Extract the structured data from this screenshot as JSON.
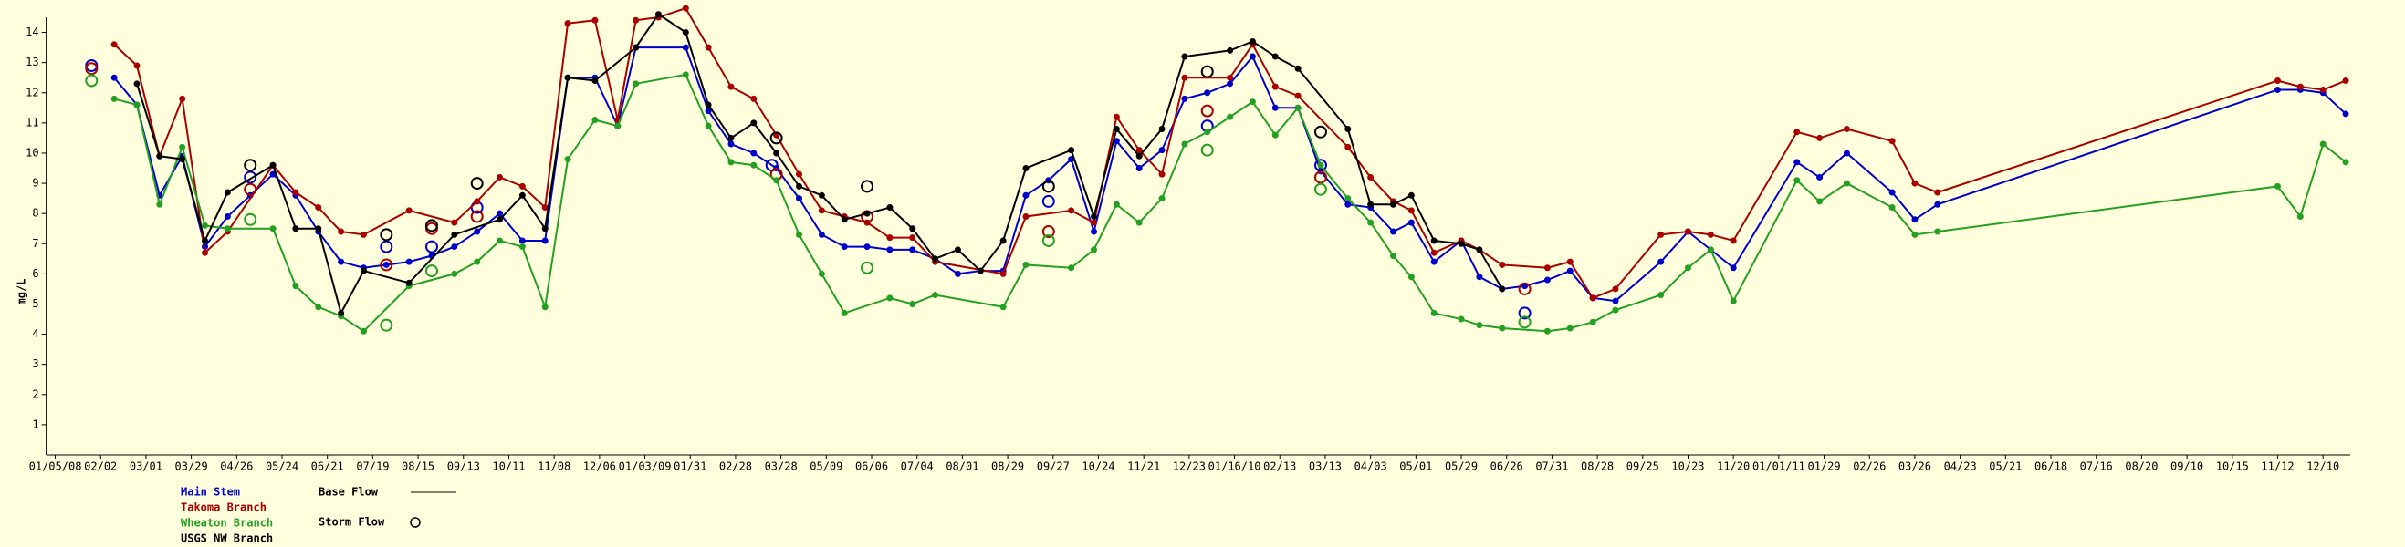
{
  "chart_data": {
    "type": "line",
    "ylabel": "mg/L",
    "background": "#ffffdd",
    "xlim": [
      -0.2,
      50.6
    ],
    "ylim": [
      0,
      14.5
    ],
    "yticks": [
      1,
      2,
      3,
      4,
      5,
      6,
      7,
      8,
      9,
      10,
      11,
      12,
      13,
      14
    ],
    "xticks": [
      {
        "value": 0,
        "label": "01/05/08"
      },
      {
        "value": 1,
        "label": "02/02"
      },
      {
        "value": 2,
        "label": "03/01"
      },
      {
        "value": 3,
        "label": "03/29"
      },
      {
        "value": 4,
        "label": "04/26"
      },
      {
        "value": 5,
        "label": "05/24"
      },
      {
        "value": 6,
        "label": "06/21"
      },
      {
        "value": 7,
        "label": "07/19"
      },
      {
        "value": 8,
        "label": "08/15"
      },
      {
        "value": 9,
        "label": "09/13"
      },
      {
        "value": 10,
        "label": "10/11"
      },
      {
        "value": 11,
        "label": "11/08"
      },
      {
        "value": 12,
        "label": "12/06"
      },
      {
        "value": 13,
        "label": "01/03/09"
      },
      {
        "value": 14,
        "label": "01/31"
      },
      {
        "value": 15,
        "label": "02/28"
      },
      {
        "value": 16,
        "label": "03/28"
      },
      {
        "value": 17,
        "label": "05/09"
      },
      {
        "value": 18,
        "label": "06/06"
      },
      {
        "value": 19,
        "label": "07/04"
      },
      {
        "value": 20,
        "label": "08/01"
      },
      {
        "value": 21,
        "label": "08/29"
      },
      {
        "value": 22,
        "label": "09/27"
      },
      {
        "value": 23,
        "label": "10/24"
      },
      {
        "value": 24,
        "label": "11/21"
      },
      {
        "value": 25,
        "label": "12/23"
      },
      {
        "value": 26,
        "label": "01/16/10"
      },
      {
        "value": 27,
        "label": "02/13"
      },
      {
        "value": 28,
        "label": "03/13"
      },
      {
        "value": 29,
        "label": "04/03"
      },
      {
        "value": 30,
        "label": "05/01"
      },
      {
        "value": 31,
        "label": "05/29"
      },
      {
        "value": 32,
        "label": "06/26"
      },
      {
        "value": 33,
        "label": "07/31"
      },
      {
        "value": 34,
        "label": "08/28"
      },
      {
        "value": 35,
        "label": "09/25"
      },
      {
        "value": 36,
        "label": "10/23"
      },
      {
        "value": 37,
        "label": "11/20"
      },
      {
        "value": 38,
        "label": "01/01/11"
      },
      {
        "value": 39,
        "label": "01/29"
      },
      {
        "value": 40,
        "label": "02/26"
      },
      {
        "value": 41,
        "label": "03/26"
      },
      {
        "value": 42,
        "label": "04/23"
      },
      {
        "value": 43,
        "label": "05/21"
      },
      {
        "value": 44,
        "label": "06/18"
      },
      {
        "value": 45,
        "label": "07/16"
      },
      {
        "value": 46,
        "label": "08/20"
      },
      {
        "value": 47,
        "label": "09/10"
      },
      {
        "value": 48,
        "label": "10/15"
      },
      {
        "value": 49,
        "label": "11/12"
      },
      {
        "value": 50,
        "label": "12/10"
      }
    ],
    "legend_labels": [
      "Base Flow",
      "Storm Flow"
    ],
    "series": [
      {
        "name": "Main Stem",
        "color": "#0000cc",
        "x": [
          1.3,
          1.8,
          2.3,
          2.8,
          3.3,
          3.8,
          4.3,
          4.8,
          5.3,
          5.8,
          6.3,
          6.8,
          7.3,
          7.8,
          8.3,
          8.8,
          9.3,
          9.8,
          10.3,
          10.8,
          11.3,
          11.9,
          12.4,
          12.8,
          13.9,
          14.4,
          14.9,
          15.4,
          15.9,
          16.4,
          16.9,
          17.4,
          17.9,
          18.4,
          18.9,
          19.4,
          19.9,
          20.4,
          20.9,
          21.4,
          21.9,
          22.4,
          22.9,
          23.4,
          23.9,
          24.4,
          24.9,
          25.4,
          25.9,
          26.4,
          26.9,
          27.4,
          27.9,
          28.5,
          29.0,
          29.5,
          29.9,
          30.4,
          31.0,
          31.4,
          31.9,
          32.4,
          32.9,
          33.4,
          33.9,
          34.4,
          35.4,
          36.0,
          36.5,
          37.0,
          38.4,
          38.9,
          39.5,
          40.5,
          41.0,
          41.5,
          49.0,
          49.5,
          50.0,
          50.5
        ],
        "values": [
          12.5,
          11.6,
          8.6,
          9.9,
          6.9,
          7.9,
          8.6,
          9.3,
          8.6,
          7.4,
          6.4,
          6.2,
          6.3,
          6.4,
          6.6,
          6.9,
          7.4,
          8.0,
          7.1,
          7.1,
          12.5,
          12.5,
          10.9,
          13.5,
          13.5,
          11.4,
          10.3,
          10.0,
          9.5,
          8.5,
          7.3,
          6.9,
          6.9,
          6.8,
          6.8,
          6.5,
          6.0,
          6.1,
          6.1,
          8.6,
          9.1,
          9.8,
          7.4,
          10.4,
          9.5,
          10.1,
          11.8,
          12.0,
          12.3,
          13.2,
          11.5,
          11.5,
          9.4,
          8.3,
          8.2,
          7.4,
          7.7,
          6.4,
          7.1,
          5.9,
          5.5,
          5.6,
          5.8,
          6.1,
          5.2,
          5.1,
          6.4,
          7.4,
          6.8,
          6.2,
          9.7,
          9.2,
          10.0,
          8.7,
          7.8,
          8.3,
          12.1,
          12.1,
          12.0,
          11.3
        ],
        "storm_x": [
          0.8,
          4.3,
          7.3,
          8.3,
          9.3,
          15.8,
          21.9,
          25.4,
          27.9,
          32.4
        ],
        "storm_values": [
          12.9,
          9.2,
          6.9,
          6.9,
          8.2,
          9.6,
          8.4,
          10.9,
          9.6,
          4.7
        ]
      },
      {
        "name": "Takoma Branch",
        "color": "#aa0000",
        "x": [
          1.3,
          1.8,
          2.3,
          2.8,
          3.3,
          3.8,
          4.8,
          5.3,
          5.8,
          6.3,
          6.8,
          7.8,
          8.8,
          9.3,
          9.8,
          10.3,
          10.8,
          11.3,
          11.9,
          12.4,
          12.8,
          13.3,
          13.9,
          14.4,
          14.9,
          15.4,
          15.9,
          16.4,
          16.9,
          17.4,
          17.9,
          18.4,
          18.9,
          19.4,
          20.9,
          21.4,
          22.4,
          22.9,
          23.4,
          23.9,
          24.4,
          24.9,
          25.9,
          26.4,
          26.9,
          27.4,
          28.5,
          29.0,
          29.5,
          29.9,
          30.4,
          31.0,
          31.4,
          31.9,
          32.9,
          33.4,
          33.9,
          34.4,
          35.4,
          36.0,
          36.5,
          37.0,
          38.4,
          38.9,
          39.5,
          40.5,
          41.0,
          41.5,
          49.0,
          49.5,
          50.0,
          50.5
        ],
        "values": [
          13.6,
          12.9,
          9.9,
          11.8,
          6.7,
          7.4,
          9.6,
          8.7,
          8.2,
          7.4,
          7.3,
          8.1,
          7.7,
          8.4,
          9.2,
          8.9,
          8.2,
          14.3,
          14.4,
          11.1,
          14.4,
          14.5,
          14.8,
          13.5,
          12.2,
          11.8,
          10.6,
          9.3,
          8.1,
          7.9,
          7.7,
          7.2,
          7.2,
          6.4,
          6.0,
          7.9,
          8.1,
          7.7,
          11.2,
          10.1,
          9.3,
          12.5,
          12.5,
          13.6,
          12.2,
          11.9,
          10.2,
          9.2,
          8.4,
          8.1,
          6.7,
          7.1,
          6.8,
          6.3,
          6.2,
          6.4,
          5.2,
          5.5,
          7.3,
          7.4,
          7.3,
          7.1,
          10.7,
          10.5,
          10.8,
          10.4,
          9.0,
          8.7,
          12.4,
          12.2,
          12.1,
          12.4
        ],
        "storm_x": [
          0.8,
          4.3,
          7.3,
          8.3,
          9.3,
          15.9,
          17.9,
          21.9,
          25.4,
          27.9,
          32.4
        ],
        "storm_values": [
          12.8,
          8.8,
          6.3,
          7.5,
          7.9,
          9.3,
          7.9,
          7.4,
          11.4,
          9.2,
          5.5
        ]
      },
      {
        "name": "Wheaton Branch",
        "color": "#22a022",
        "x": [
          1.3,
          1.8,
          2.3,
          2.8,
          3.3,
          3.8,
          4.8,
          5.3,
          5.8,
          6.3,
          6.8,
          7.8,
          8.8,
          9.3,
          9.8,
          10.3,
          10.8,
          11.3,
          11.9,
          12.4,
          12.8,
          13.9,
          14.4,
          14.9,
          15.4,
          15.9,
          16.4,
          16.9,
          17.4,
          18.4,
          18.9,
          19.4,
          20.9,
          21.4,
          22.4,
          22.9,
          23.4,
          23.9,
          24.4,
          24.9,
          25.4,
          25.9,
          26.4,
          26.9,
          27.4,
          27.9,
          28.5,
          29.0,
          29.5,
          29.9,
          30.4,
          31.0,
          31.4,
          31.9,
          32.9,
          33.4,
          33.9,
          34.4,
          35.4,
          36.0,
          36.5,
          37.0,
          38.4,
          38.9,
          39.5,
          40.5,
          41.0,
          41.5,
          49.0,
          49.5,
          50.0,
          50.5
        ],
        "values": [
          11.8,
          11.6,
          8.3,
          10.2,
          7.6,
          7.5,
          7.5,
          5.6,
          4.9,
          4.6,
          4.1,
          5.6,
          6.0,
          6.4,
          7.1,
          6.9,
          4.9,
          9.8,
          11.1,
          10.9,
          12.3,
          12.6,
          10.9,
          9.7,
          9.6,
          9.1,
          7.3,
          6.0,
          4.7,
          5.2,
          5.0,
          5.3,
          4.9,
          6.3,
          6.2,
          6.8,
          8.3,
          7.7,
          8.5,
          10.3,
          10.7,
          11.2,
          11.7,
          10.6,
          11.5,
          9.6,
          8.5,
          7.7,
          6.6,
          5.9,
          4.7,
          4.5,
          4.3,
          4.2,
          4.1,
          4.2,
          4.4,
          4.8,
          5.3,
          6.2,
          6.8,
          5.1,
          9.1,
          8.4,
          9.0,
          8.2,
          7.3,
          7.4,
          8.9,
          7.9,
          10.3,
          9.7
        ],
        "storm_x": [
          0.8,
          4.3,
          7.3,
          8.3,
          17.9,
          21.9,
          25.4,
          27.9,
          32.4
        ],
        "storm_values": [
          12.4,
          7.8,
          4.3,
          6.1,
          6.2,
          7.1,
          10.1,
          8.8,
          4.4
        ]
      },
      {
        "name": "USGS NW Branch",
        "color": "#000000",
        "x": [
          1.8,
          2.3,
          2.8,
          3.3,
          3.8,
          4.8,
          5.3,
          5.8,
          6.3,
          6.8,
          7.8,
          8.8,
          9.8,
          10.3,
          10.8,
          11.3,
          11.9,
          12.8,
          13.3,
          13.9,
          14.4,
          14.9,
          15.4,
          15.9,
          16.4,
          16.9,
          17.4,
          17.9,
          18.4,
          18.9,
          19.4,
          19.9,
          20.4,
          20.9,
          21.4,
          22.4,
          22.9,
          23.4,
          23.9,
          24.4,
          24.9,
          25.9,
          26.4,
          26.9,
          27.4,
          28.5,
          29.0,
          29.5,
          29.9,
          30.4,
          31.0,
          31.4,
          31.9
        ],
        "values": [
          12.3,
          9.9,
          9.8,
          7.1,
          8.7,
          9.6,
          7.5,
          7.5,
          4.7,
          6.1,
          5.7,
          7.3,
          7.8,
          8.6,
          7.5,
          12.5,
          12.4,
          13.5,
          14.6,
          14.0,
          11.6,
          10.5,
          11.0,
          10.0,
          8.9,
          8.6,
          7.8,
          8.0,
          8.2,
          7.5,
          6.5,
          6.8,
          6.1,
          7.1,
          9.5,
          10.1,
          7.9,
          10.8,
          9.9,
          10.8,
          13.2,
          13.4,
          13.7,
          13.2,
          12.8,
          10.8,
          8.3,
          8.3,
          8.6,
          7.1,
          7.0,
          6.8,
          5.5
        ],
        "storm_x": [
          4.3,
          7.3,
          8.3,
          9.3,
          15.9,
          17.9,
          21.9,
          25.4,
          27.9
        ],
        "storm_values": [
          9.6,
          7.3,
          7.6,
          9.0,
          10.5,
          8.9,
          8.9,
          12.7,
          10.7
        ]
      }
    ]
  }
}
